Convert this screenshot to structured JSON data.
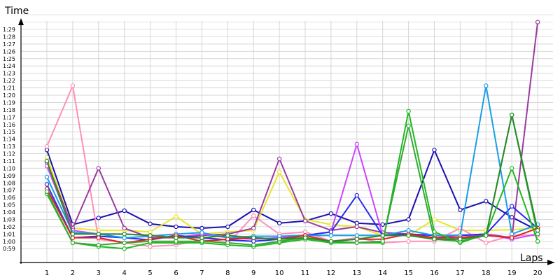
{
  "chart_data": {
    "type": "line",
    "title": "",
    "ylabel": "Time",
    "xlabel": "Laps",
    "grid": true,
    "legend": "none",
    "x": [
      1,
      2,
      3,
      4,
      5,
      6,
      7,
      8,
      9,
      10,
      11,
      12,
      13,
      14,
      15,
      16,
      17,
      18,
      19,
      20
    ],
    "y_tick_labels": [
      "0:59",
      "1:00",
      "1:01",
      "1:02",
      "1:03",
      "1:04",
      "1:05",
      "1:06",
      "1:07",
      "1:08",
      "1:09",
      "1:10",
      "1:11",
      "1:12",
      "1:13",
      "1:14",
      "1:15",
      "1:16",
      "1:17",
      "1:18",
      "1:19",
      "1:20",
      "1:21",
      "1:22",
      "1:23",
      "1:24",
      "1:25",
      "1:26",
      "1:27",
      "1:28",
      "1:29"
    ],
    "ylim_seconds": [
      58,
      91
    ],
    "y_unit": "seconds",
    "series": [
      {
        "color": "#1a0fb0",
        "values": [
          72.5,
          62.3,
          63.2,
          64.2,
          62.4,
          62.0,
          61.8,
          62.0,
          64.3,
          62.5,
          62.8,
          63.8,
          62.5,
          62.3,
          63.0,
          72.5,
          64.3,
          65.5,
          63.3,
          61.5
        ]
      },
      {
        "color": "#e6e62a",
        "values": [
          71.5,
          61.8,
          61.5,
          61.5,
          61.3,
          63.4,
          61.0,
          61.3,
          61.5,
          69.5,
          63.0,
          62.3,
          62.0,
          60.8,
          60.8,
          63.0,
          61.5,
          61.5,
          61.6,
          61.8
        ]
      },
      {
        "color": "#ff8fba",
        "values": [
          73.0,
          81.3,
          60.3,
          59.8,
          59.3,
          59.5,
          60.2,
          59.7,
          63.5,
          61.0,
          61.3,
          60.0,
          60.5,
          59.8,
          60.0,
          60.0,
          61.8,
          59.8,
          60.8,
          60.8
        ]
      },
      {
        "color": "#9a3aa0",
        "values": [
          70.8,
          61.8,
          70.0,
          61.8,
          60.5,
          60.5,
          60.8,
          61.0,
          61.8,
          71.3,
          62.8,
          61.5,
          62.0,
          61.2,
          61.0,
          60.5,
          60.8,
          61.0,
          60.5,
          90.0
        ]
      },
      {
        "color": "#cc44ff",
        "values": [
          70.3,
          61.5,
          61.0,
          61.0,
          60.8,
          60.5,
          61.0,
          60.5,
          60.3,
          60.5,
          60.8,
          61.3,
          73.3,
          60.8,
          61.0,
          60.5,
          60.5,
          61.0,
          60.3,
          61.0
        ]
      },
      {
        "color": "#2a2aee",
        "values": [
          67.8,
          60.5,
          60.7,
          60.5,
          60.2,
          60.8,
          60.5,
          60.2,
          60.0,
          60.3,
          60.8,
          61.3,
          66.3,
          60.8,
          61.0,
          60.8,
          60.8,
          61.0,
          64.8,
          61.8
        ]
      },
      {
        "color": "#1a9ee8",
        "values": [
          68.8,
          61.2,
          61.0,
          60.5,
          60.7,
          61.0,
          61.2,
          60.5,
          60.7,
          60.7,
          60.8,
          60.8,
          60.8,
          60.8,
          61.5,
          60.8,
          60.8,
          81.3,
          61.0,
          62.3
        ]
      },
      {
        "color": "#e02020",
        "values": [
          67.2,
          60.5,
          60.5,
          59.8,
          60.3,
          60.8,
          60.0,
          60.3,
          60.5,
          60.3,
          60.8,
          60.0,
          60.3,
          60.3,
          61.0,
          60.5,
          60.5,
          60.8,
          60.5,
          61.8
        ]
      },
      {
        "color": "#22b822",
        "values": [
          66.5,
          59.8,
          59.3,
          59.0,
          59.8,
          59.8,
          59.8,
          59.5,
          59.3,
          59.8,
          60.3,
          59.8,
          59.8,
          59.8,
          77.8,
          61.3,
          59.8,
          61.0,
          70.0,
          60.0
        ]
      },
      {
        "color": "#33aa33",
        "values": [
          66.8,
          59.8,
          59.5,
          59.8,
          60.0,
          60.0,
          60.0,
          59.8,
          59.5,
          60.0,
          60.5,
          60.0,
          59.8,
          60.0,
          75.8,
          60.3,
          60.0,
          60.8,
          77.3,
          61.0
        ]
      },
      {
        "color": "#2a8a2a",
        "values": [
          71.0,
          61.0,
          61.0,
          61.0,
          60.8,
          60.5,
          60.5,
          60.8,
          60.5,
          60.3,
          60.5,
          60.0,
          60.3,
          60.8,
          60.8,
          60.3,
          60.3,
          60.8,
          77.3,
          61.5
        ]
      }
    ]
  }
}
